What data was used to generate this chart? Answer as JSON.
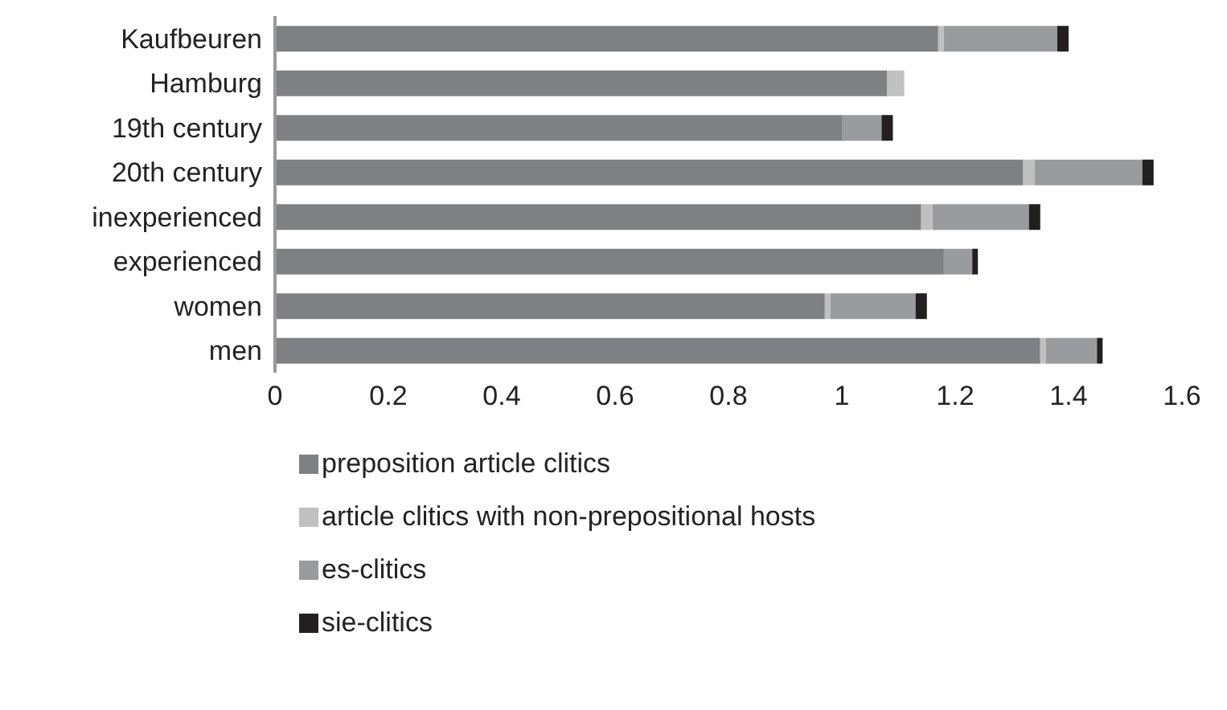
{
  "chart_data": {
    "type": "bar",
    "orientation": "horizontal",
    "stacked": true,
    "categories": [
      "Kaufbeuren",
      "Hamburg",
      "19th century",
      "20th century",
      "inexperienced",
      "experienced",
      "women",
      "men"
    ],
    "series": [
      {
        "name": "preposition article clitics",
        "color": "#7f8083",
        "values": [
          1.17,
          1.08,
          1.0,
          1.32,
          1.14,
          1.18,
          0.97,
          1.35
        ]
      },
      {
        "name": "article clitics with non-prepositional hosts",
        "color": "#c0c0c0",
        "values": [
          0.01,
          0.03,
          0,
          0.02,
          0.02,
          0.0,
          0.01,
          0.01
        ]
      },
      {
        "name": "es-clitics",
        "color": "#9a9b9e",
        "values": [
          0.2,
          0.0,
          0.07,
          0.19,
          0.17,
          0.05,
          0.15,
          0.09
        ]
      },
      {
        "name": "sie-clitics",
        "color": "#231f20",
        "values": [
          0.02,
          0,
          0.02,
          0.02,
          0.02,
          0.01,
          0.02,
          0.01
        ]
      }
    ],
    "xlim": [
      0,
      1.6
    ],
    "xticks": [
      0,
      0.2,
      0.4,
      0.6,
      0.8,
      1,
      1.2,
      1.4,
      1.6
    ],
    "grid": false,
    "legend": "bottom"
  }
}
